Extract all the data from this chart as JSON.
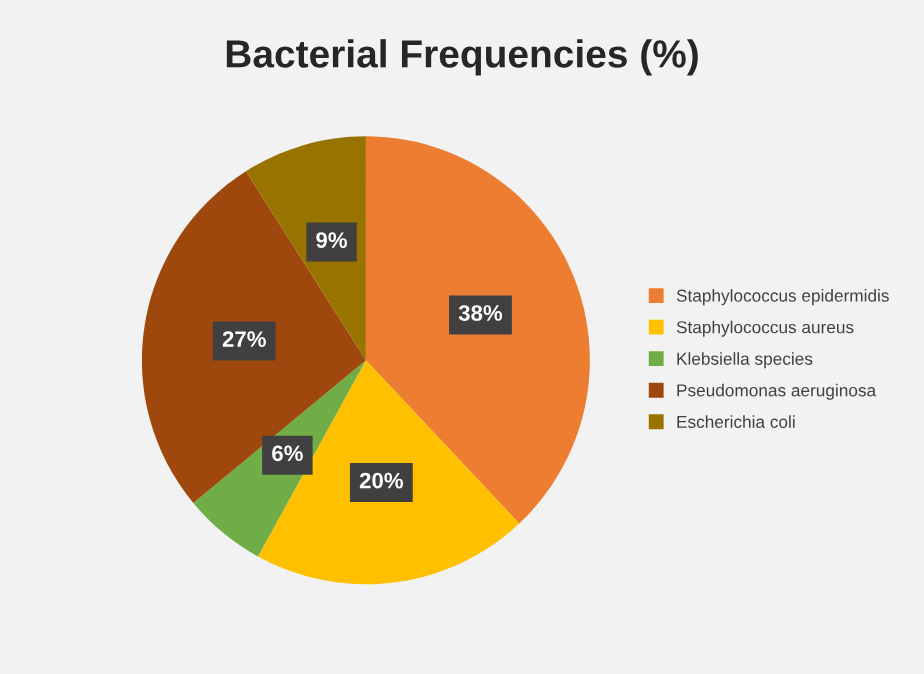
{
  "chart_data": {
    "type": "pie",
    "title": "Bacterial Frequencies (%)",
    "categories": [
      "Staphylococcus epidermidis",
      "Staphylococcus aureus",
      "Klebsiella species",
      "Pseudomonas aeruginosa",
      "Escherichia coli"
    ],
    "values": [
      38,
      20,
      6,
      27,
      9
    ],
    "colors": [
      "#ed7d31",
      "#ffc000",
      "#70ad47",
      "#9e480e",
      "#997300"
    ],
    "value_labels": [
      "38%",
      "20%",
      "6%",
      "27%",
      "9%"
    ],
    "legend": "right"
  }
}
